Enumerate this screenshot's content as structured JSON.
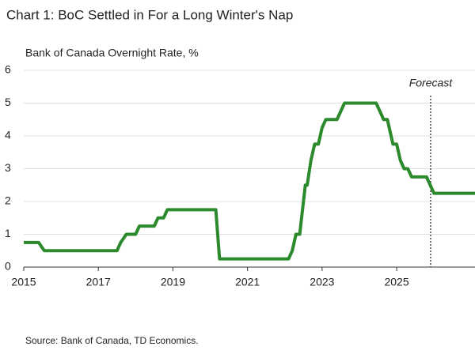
{
  "chart_data": {
    "type": "line",
    "title": "Chart 1: BoC Settled in For a Long Winter's Nap",
    "subtitle": "Bank of Canada Overnight Rate, %",
    "source": "Source: Bank of Canada, TD Economics.",
    "annotation": "Forecast",
    "forecast_x": 2025.91,
    "x": [
      2015.0,
      2015.4,
      2015.55,
      2017.5,
      2017.6,
      2017.75,
      2018.0,
      2018.1,
      2018.5,
      2018.6,
      2018.75,
      2018.85,
      2020.15,
      2020.25,
      2022.1,
      2022.2,
      2022.3,
      2022.4,
      2022.45,
      2022.55,
      2022.6,
      2022.7,
      2022.8,
      2022.9,
      2023.0,
      2023.1,
      2023.4,
      2023.5,
      2023.6,
      2024.45,
      2024.55,
      2024.65,
      2024.75,
      2024.8,
      2024.9,
      2025.0,
      2025.1,
      2025.2,
      2025.3,
      2025.4,
      2025.8,
      2025.9,
      2026.0,
      2027.1
    ],
    "series": [
      {
        "name": "Bank of Canada Overnight Rate",
        "color": "#2b8a2b",
        "values": [
          0.75,
          0.75,
          0.5,
          0.5,
          0.75,
          1.0,
          1.0,
          1.25,
          1.25,
          1.5,
          1.5,
          1.75,
          1.75,
          0.25,
          0.25,
          0.5,
          1.0,
          1.0,
          1.5,
          2.5,
          2.5,
          3.25,
          3.75,
          3.75,
          4.25,
          4.5,
          4.5,
          4.75,
          5.0,
          5.0,
          4.75,
          4.5,
          4.5,
          4.25,
          3.75,
          3.75,
          3.25,
          3.0,
          3.0,
          2.75,
          2.75,
          2.5,
          2.25,
          2.25
        ]
      }
    ],
    "xlim": [
      2015,
      2027.1
    ],
    "xticks": [
      2015,
      2017,
      2019,
      2021,
      2023,
      2025
    ],
    "ylim": [
      0,
      6
    ],
    "yticks": [
      0,
      1,
      2,
      3,
      4,
      5,
      6
    ],
    "grid": true
  }
}
